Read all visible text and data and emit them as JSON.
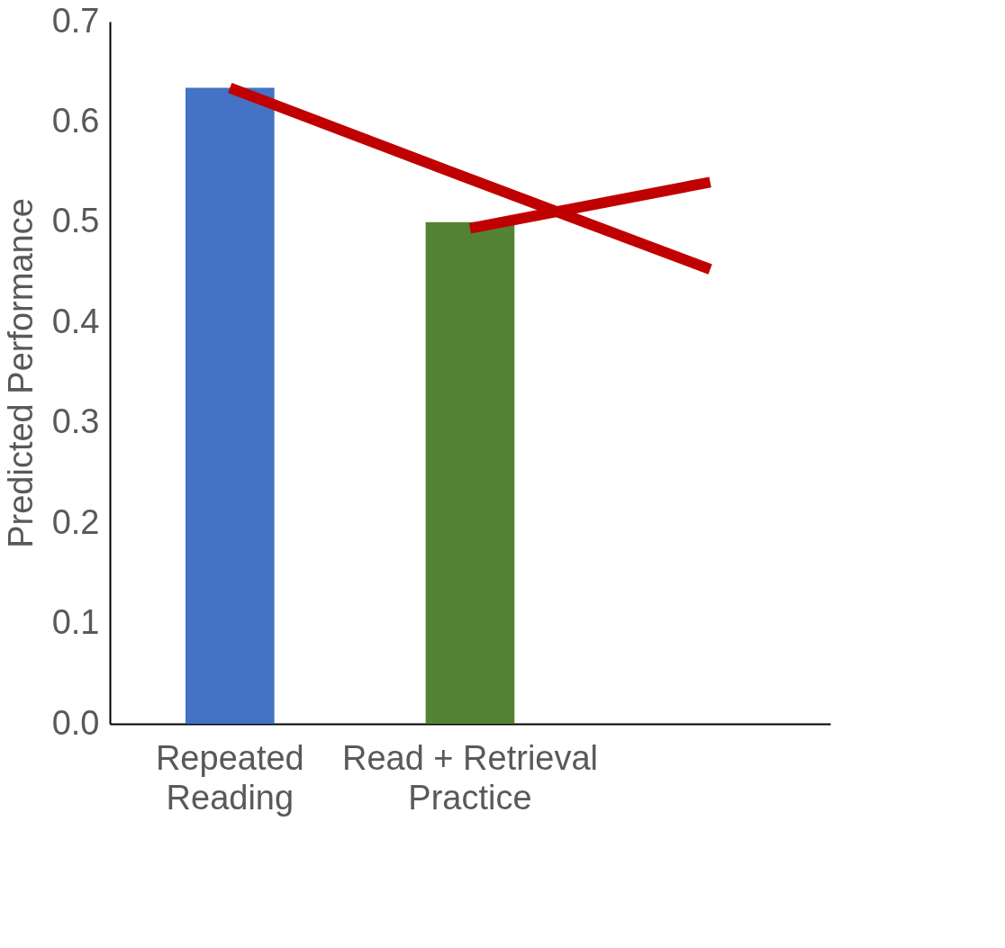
{
  "chart_data": {
    "type": "bar",
    "ylabel": "Predicted Performance",
    "categories": [
      "Repeated Reading",
      "Read + Retrieval Practice",
      null
    ],
    "ylim": [
      0,
      0.7
    ],
    "yticks": [
      {
        "value": 0,
        "label": "0.0"
      },
      0.1,
      0.2,
      0.3,
      0.4,
      0.5,
      0.6,
      0.7
    ],
    "grid": false,
    "series": [
      {
        "colors": [
          "#4472c4",
          "#548235",
          "#4472c4"
        ],
        "values": [
          0.634,
          0.5,
          null
        ]
      },
      {
        "type": "line",
        "color": "#c00000",
        "values": [
          0.634,
          0.543,
          0.453
        ]
      },
      {
        "type": "line",
        "color": "#c00000",
        "values": [
          null,
          0.494,
          0.54
        ]
      }
    ]
  }
}
